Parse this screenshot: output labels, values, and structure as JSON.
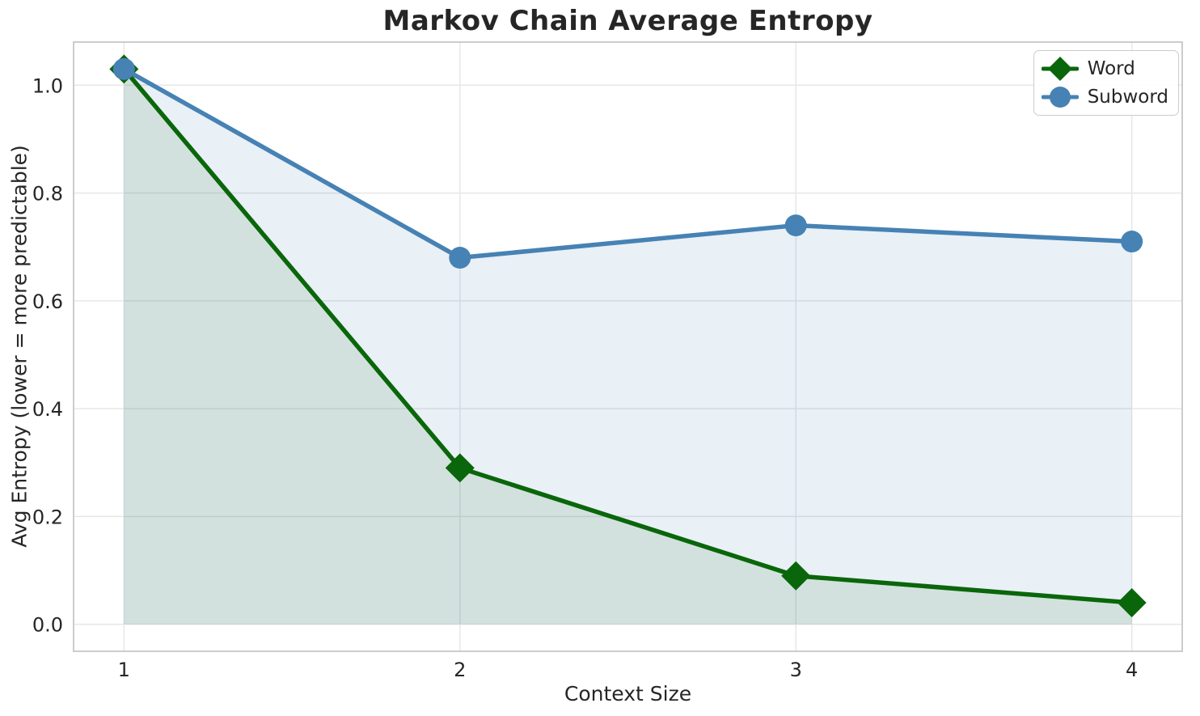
{
  "chart_data": {
    "type": "line",
    "title": "Markov Chain Average Entropy",
    "xlabel": "Context Size",
    "ylabel": "Avg Entropy (lower = more predictable)",
    "x": [
      1,
      2,
      3,
      4
    ],
    "xtick_labels": [
      "1",
      "2",
      "3",
      "4"
    ],
    "yticks": [
      0.0,
      0.2,
      0.4,
      0.6,
      0.8,
      1.0
    ],
    "ytick_labels": [
      "0.0",
      "0.2",
      "0.4",
      "0.6",
      "0.8",
      "1.0"
    ],
    "xlim": [
      0.85,
      4.15
    ],
    "ylim": [
      -0.05,
      1.08
    ],
    "grid": true,
    "legend_position": "upper right",
    "series": [
      {
        "name": "Word",
        "marker": "diamond",
        "color": "#0a660a",
        "fill_color": "rgba(10,102,10,0.10)",
        "values": [
          1.03,
          0.29,
          0.09,
          0.04
        ],
        "area_fill_to_zero": true
      },
      {
        "name": "Subword",
        "marker": "circle",
        "color": "#4682b4",
        "fill_color": "rgba(70,130,180,0.12)",
        "values": [
          1.03,
          0.68,
          0.74,
          0.71
        ],
        "area_fill_to_zero": true
      }
    ],
    "colors": {
      "background": "#ffffff",
      "grid": "#e5e8e8",
      "spine": "#c6c6c6",
      "text": "#262626"
    }
  }
}
